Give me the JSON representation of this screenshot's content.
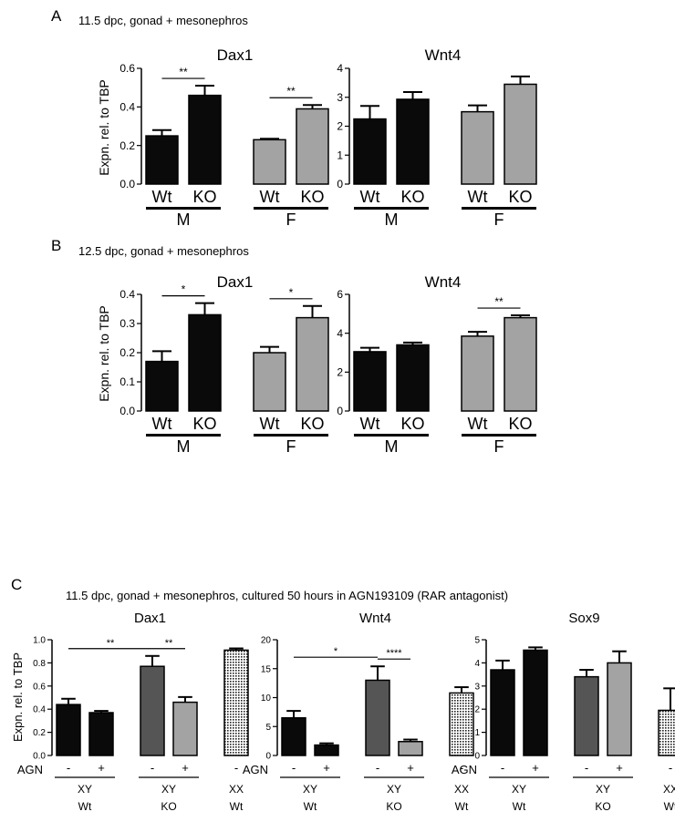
{
  "panels": [
    {
      "letter": "A",
      "heading": "11.5 dpc, gonad + mesonephros"
    },
    {
      "letter": "B",
      "heading": "12.5 dpc, gonad + mesonephros"
    },
    {
      "letter": "C",
      "heading": "11.5 dpc, gonad + mesonephros, cultured 50 hours in AGN193109 (RAR antagonist)"
    }
  ],
  "colors": {
    "black": "#0a0a0a",
    "gray": "#a3a3a3",
    "dark_gray": "#555555",
    "dotted": "#d9d9d9"
  },
  "chart_data": [
    {
      "panel": "A",
      "type": "bar",
      "title": "Dax1",
      "ylabel": "Expn. rel. to TBP",
      "ylim": [
        0,
        0.6
      ],
      "yticks": [
        0.0,
        0.2,
        0.4,
        0.6
      ],
      "tick_decimals": 1,
      "categories": [
        "Wt",
        "KO",
        "Wt",
        "KO"
      ],
      "groups": [
        "M",
        "F"
      ],
      "values": [
        0.25,
        0.46,
        0.23,
        0.39
      ],
      "errors": [
        0.03,
        0.05,
        0.005,
        0.02
      ],
      "fills": [
        "black",
        "black",
        "gray",
        "gray"
      ],
      "significance": [
        {
          "from": 0,
          "to": 1,
          "label": "**"
        },
        {
          "from": 2,
          "to": 3,
          "label": "**"
        }
      ]
    },
    {
      "panel": "A",
      "type": "bar",
      "title": "Wnt4",
      "ylabel": "",
      "ylim": [
        0,
        4
      ],
      "yticks": [
        0,
        1,
        2,
        3,
        4
      ],
      "tick_decimals": 0,
      "categories": [
        "Wt",
        "KO",
        "Wt",
        "KO"
      ],
      "groups": [
        "M",
        "F"
      ],
      "values": [
        2.25,
        2.93,
        2.5,
        3.45
      ],
      "errors": [
        0.45,
        0.25,
        0.22,
        0.27
      ],
      "fills": [
        "black",
        "black",
        "gray",
        "gray"
      ],
      "significance": []
    },
    {
      "panel": "B",
      "type": "bar",
      "title": "Dax1",
      "ylabel": "Expn. rel. to TBP",
      "ylim": [
        0,
        0.4
      ],
      "yticks": [
        0.0,
        0.1,
        0.2,
        0.3,
        0.4
      ],
      "tick_decimals": 1,
      "categories": [
        "Wt",
        "KO",
        "Wt",
        "KO"
      ],
      "groups": [
        "M",
        "F"
      ],
      "values": [
        0.17,
        0.33,
        0.2,
        0.32
      ],
      "errors": [
        0.035,
        0.04,
        0.02,
        0.04
      ],
      "fills": [
        "black",
        "black",
        "gray",
        "gray"
      ],
      "significance": [
        {
          "from": 0,
          "to": 1,
          "label": "*"
        },
        {
          "from": 2,
          "to": 3,
          "label": "*"
        }
      ]
    },
    {
      "panel": "B",
      "type": "bar",
      "title": "Wnt4",
      "ylabel": "",
      "ylim": [
        0,
        6
      ],
      "yticks": [
        0,
        2,
        4,
        6
      ],
      "tick_decimals": 0,
      "categories": [
        "Wt",
        "KO",
        "Wt",
        "KO"
      ],
      "groups": [
        "M",
        "F"
      ],
      "values": [
        3.05,
        3.4,
        3.85,
        4.8
      ],
      "errors": [
        0.2,
        0.12,
        0.22,
        0.12
      ],
      "fills": [
        "black",
        "black",
        "gray",
        "gray"
      ],
      "significance": [
        {
          "from": 2,
          "to": 3,
          "label": "**"
        }
      ]
    },
    {
      "panel": "C",
      "type": "bar",
      "title": "Dax1",
      "ylabel": "Expn. rel. to TBP",
      "ylim": [
        0,
        1.0
      ],
      "yticks": [
        0.0,
        0.2,
        0.4,
        0.6,
        0.8,
        1.0
      ],
      "tick_decimals": 1,
      "treatment_label": "AGN",
      "treatment": [
        "-",
        "+",
        "-",
        "+",
        "-"
      ],
      "groups": [
        {
          "top": "XY",
          "bottom": "Wt"
        },
        {
          "top": "XY",
          "bottom": "KO"
        },
        {
          "top": "XX",
          "bottom": "Wt"
        }
      ],
      "values": [
        0.44,
        0.37,
        0.77,
        0.46,
        0.91
      ],
      "errors": [
        0.05,
        0.015,
        0.09,
        0.045,
        0.015
      ],
      "fills": [
        "black",
        "black",
        "dark_gray",
        "gray",
        "dotted"
      ],
      "significance": [
        {
          "from": 0,
          "to": 2,
          "label": "**"
        },
        {
          "from": 2,
          "to": 3,
          "label": "**"
        }
      ]
    },
    {
      "panel": "C",
      "type": "bar",
      "title": "Wnt4",
      "ylabel": "",
      "ylim": [
        0,
        20
      ],
      "yticks": [
        0,
        5,
        10,
        15,
        20
      ],
      "tick_decimals": 0,
      "treatment_label": "AGN",
      "treatment": [
        "-",
        "+",
        "-",
        "+",
        "-"
      ],
      "groups": [
        {
          "top": "XY",
          "bottom": "Wt"
        },
        {
          "top": "XY",
          "bottom": "KO"
        },
        {
          "top": "XX",
          "bottom": "Wt"
        }
      ],
      "values": [
        6.5,
        1.8,
        13.0,
        2.4,
        10.8
      ],
      "errors": [
        1.2,
        0.3,
        2.4,
        0.35,
        1.0
      ],
      "fills": [
        "black",
        "black",
        "dark_gray",
        "gray",
        "dotted"
      ],
      "significance": [
        {
          "from": 0,
          "to": 2,
          "label": "*"
        },
        {
          "from": 2,
          "to": 3,
          "label": "****"
        }
      ]
    },
    {
      "panel": "C",
      "type": "bar",
      "title": "Sox9",
      "ylabel": "",
      "ylim": [
        0,
        5
      ],
      "yticks": [
        0,
        1,
        2,
        3,
        4,
        5
      ],
      "tick_decimals": 0,
      "treatment_label": "AGN",
      "treatment": [
        "-",
        "+",
        "-",
        "+",
        "-"
      ],
      "groups": [
        {
          "top": "XY",
          "bottom": "Wt"
        },
        {
          "top": "XY",
          "bottom": "KO"
        },
        {
          "top": "XX",
          "bottom": "Wt"
        }
      ],
      "values": [
        3.7,
        4.55,
        3.4,
        4.0,
        1.95
      ],
      "errors": [
        0.4,
        0.12,
        0.3,
        0.5,
        0.95
      ],
      "fills": [
        "black",
        "black",
        "dark_gray",
        "gray",
        "dotted"
      ],
      "significance": []
    }
  ]
}
